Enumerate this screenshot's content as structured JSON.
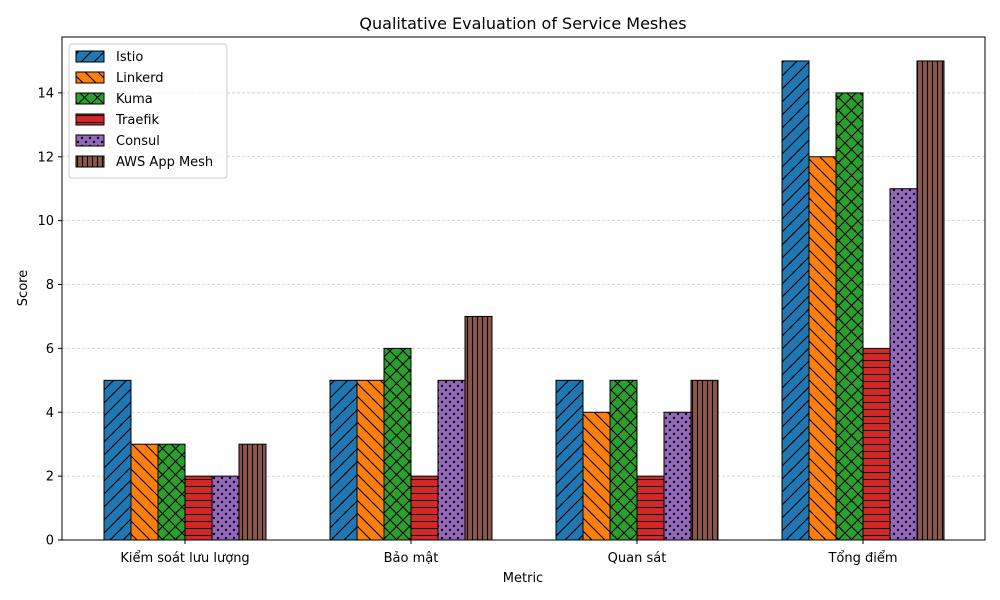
{
  "chart_data": {
    "type": "bar",
    "title": "Qualitative Evaluation of Service Meshes",
    "xlabel": "Metric",
    "ylabel": "Score",
    "categories": [
      "Kiểm soát lưu lượng",
      "Bảo mật",
      "Quan sát",
      "Tổng điểm"
    ],
    "ylim": [
      0,
      15.75
    ],
    "yticks": [
      0,
      2,
      4,
      6,
      8,
      10,
      12,
      14
    ],
    "grid": "y-dashed",
    "legend_position": "top-left",
    "series": [
      {
        "name": "Istio",
        "values": [
          5,
          5,
          5,
          15
        ],
        "color": "#1f77b4",
        "hatch": "diagonal-forward"
      },
      {
        "name": "Linkerd",
        "values": [
          3,
          5,
          4,
          12
        ],
        "color": "#ff7f0e",
        "hatch": "diagonal-back"
      },
      {
        "name": "Kuma",
        "values": [
          3,
          6,
          5,
          14
        ],
        "color": "#2ca02c",
        "hatch": "cross"
      },
      {
        "name": "Traefik",
        "values": [
          2,
          2,
          2,
          6
        ],
        "color": "#d62728",
        "hatch": "horizontal"
      },
      {
        "name": "Consul",
        "values": [
          2,
          5,
          4,
          11
        ],
        "color": "#9467bd",
        "hatch": "dots"
      },
      {
        "name": "AWS App Mesh",
        "values": [
          3,
          7,
          5,
          15
        ],
        "color": "#8c564b",
        "hatch": "vertical"
      }
    ]
  }
}
